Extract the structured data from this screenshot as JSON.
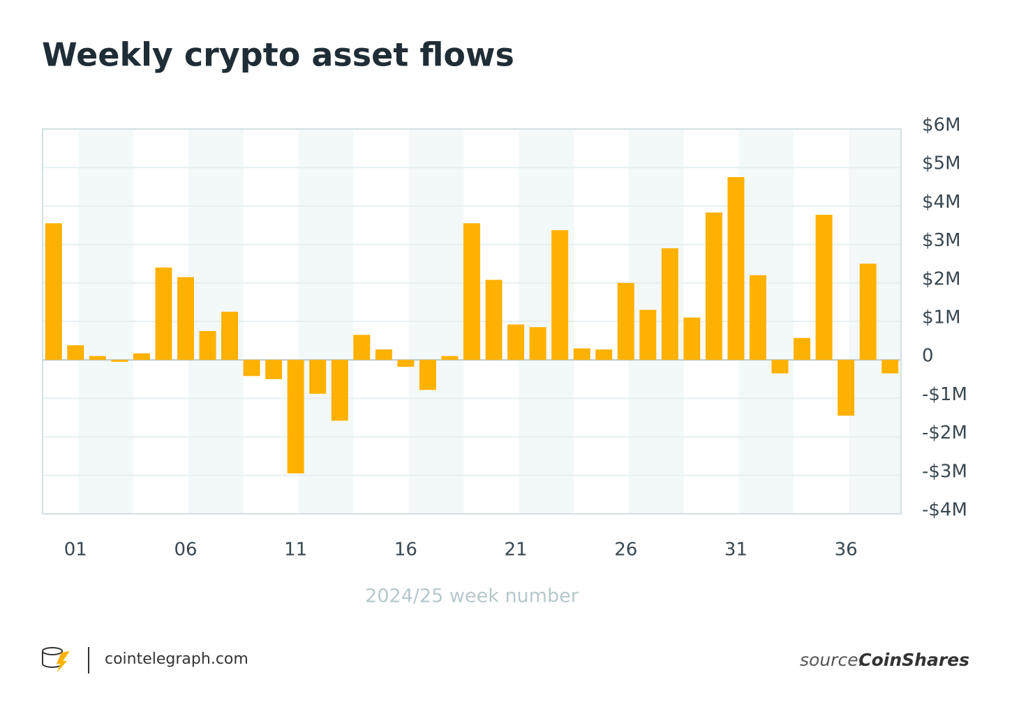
{
  "chart_data": {
    "type": "bar",
    "title": "Weekly crypto asset flows",
    "x_label": "2024/25 week number",
    "categories": [
      null,
      "01",
      null,
      null,
      null,
      null,
      "06",
      null,
      null,
      null,
      null,
      "11",
      null,
      null,
      null,
      null,
      "16",
      null,
      null,
      null,
      null,
      "21",
      null,
      null,
      null,
      null,
      "26",
      null,
      null,
      null,
      null,
      "31",
      null,
      null,
      null,
      null,
      "36",
      null,
      null
    ],
    "values": [
      3.55,
      0.38,
      0.1,
      -0.05,
      0.17,
      2.4,
      2.15,
      0.75,
      1.25,
      -0.42,
      -0.5,
      -2.95,
      -0.88,
      -1.58,
      0.65,
      0.27,
      -0.18,
      -0.78,
      0.1,
      3.55,
      2.08,
      0.92,
      0.85,
      3.37,
      0.3,
      0.27,
      2.0,
      1.3,
      2.9,
      1.1,
      3.83,
      4.75,
      2.2,
      -0.35,
      0.57,
      3.77,
      -1.45,
      2.5,
      -0.35
    ],
    "color": "#ffb100",
    "ylim": [
      -4,
      6
    ],
    "yticks": [
      {
        "value": -4,
        "label": "-$4M"
      },
      {
        "value": -3,
        "label": "-$3M"
      },
      {
        "value": -2,
        "label": "-$2M"
      },
      {
        "value": -1,
        "label": "-$1M"
      },
      0,
      {
        "value": 1,
        "label": "$1M"
      },
      {
        "value": 2,
        "label": "$2M"
      },
      {
        "value": 3,
        "label": "$3M"
      },
      {
        "value": 4,
        "label": "$4M"
      },
      {
        "value": 5,
        "label": "$5M"
      },
      {
        "value": 6,
        "label": "$6M"
      }
    ],
    "grid": true,
    "y_axis_side": "right"
  },
  "footer": {
    "site": "cointelegraph.com",
    "source_prefix": "source:",
    "source": "CoinShares"
  }
}
